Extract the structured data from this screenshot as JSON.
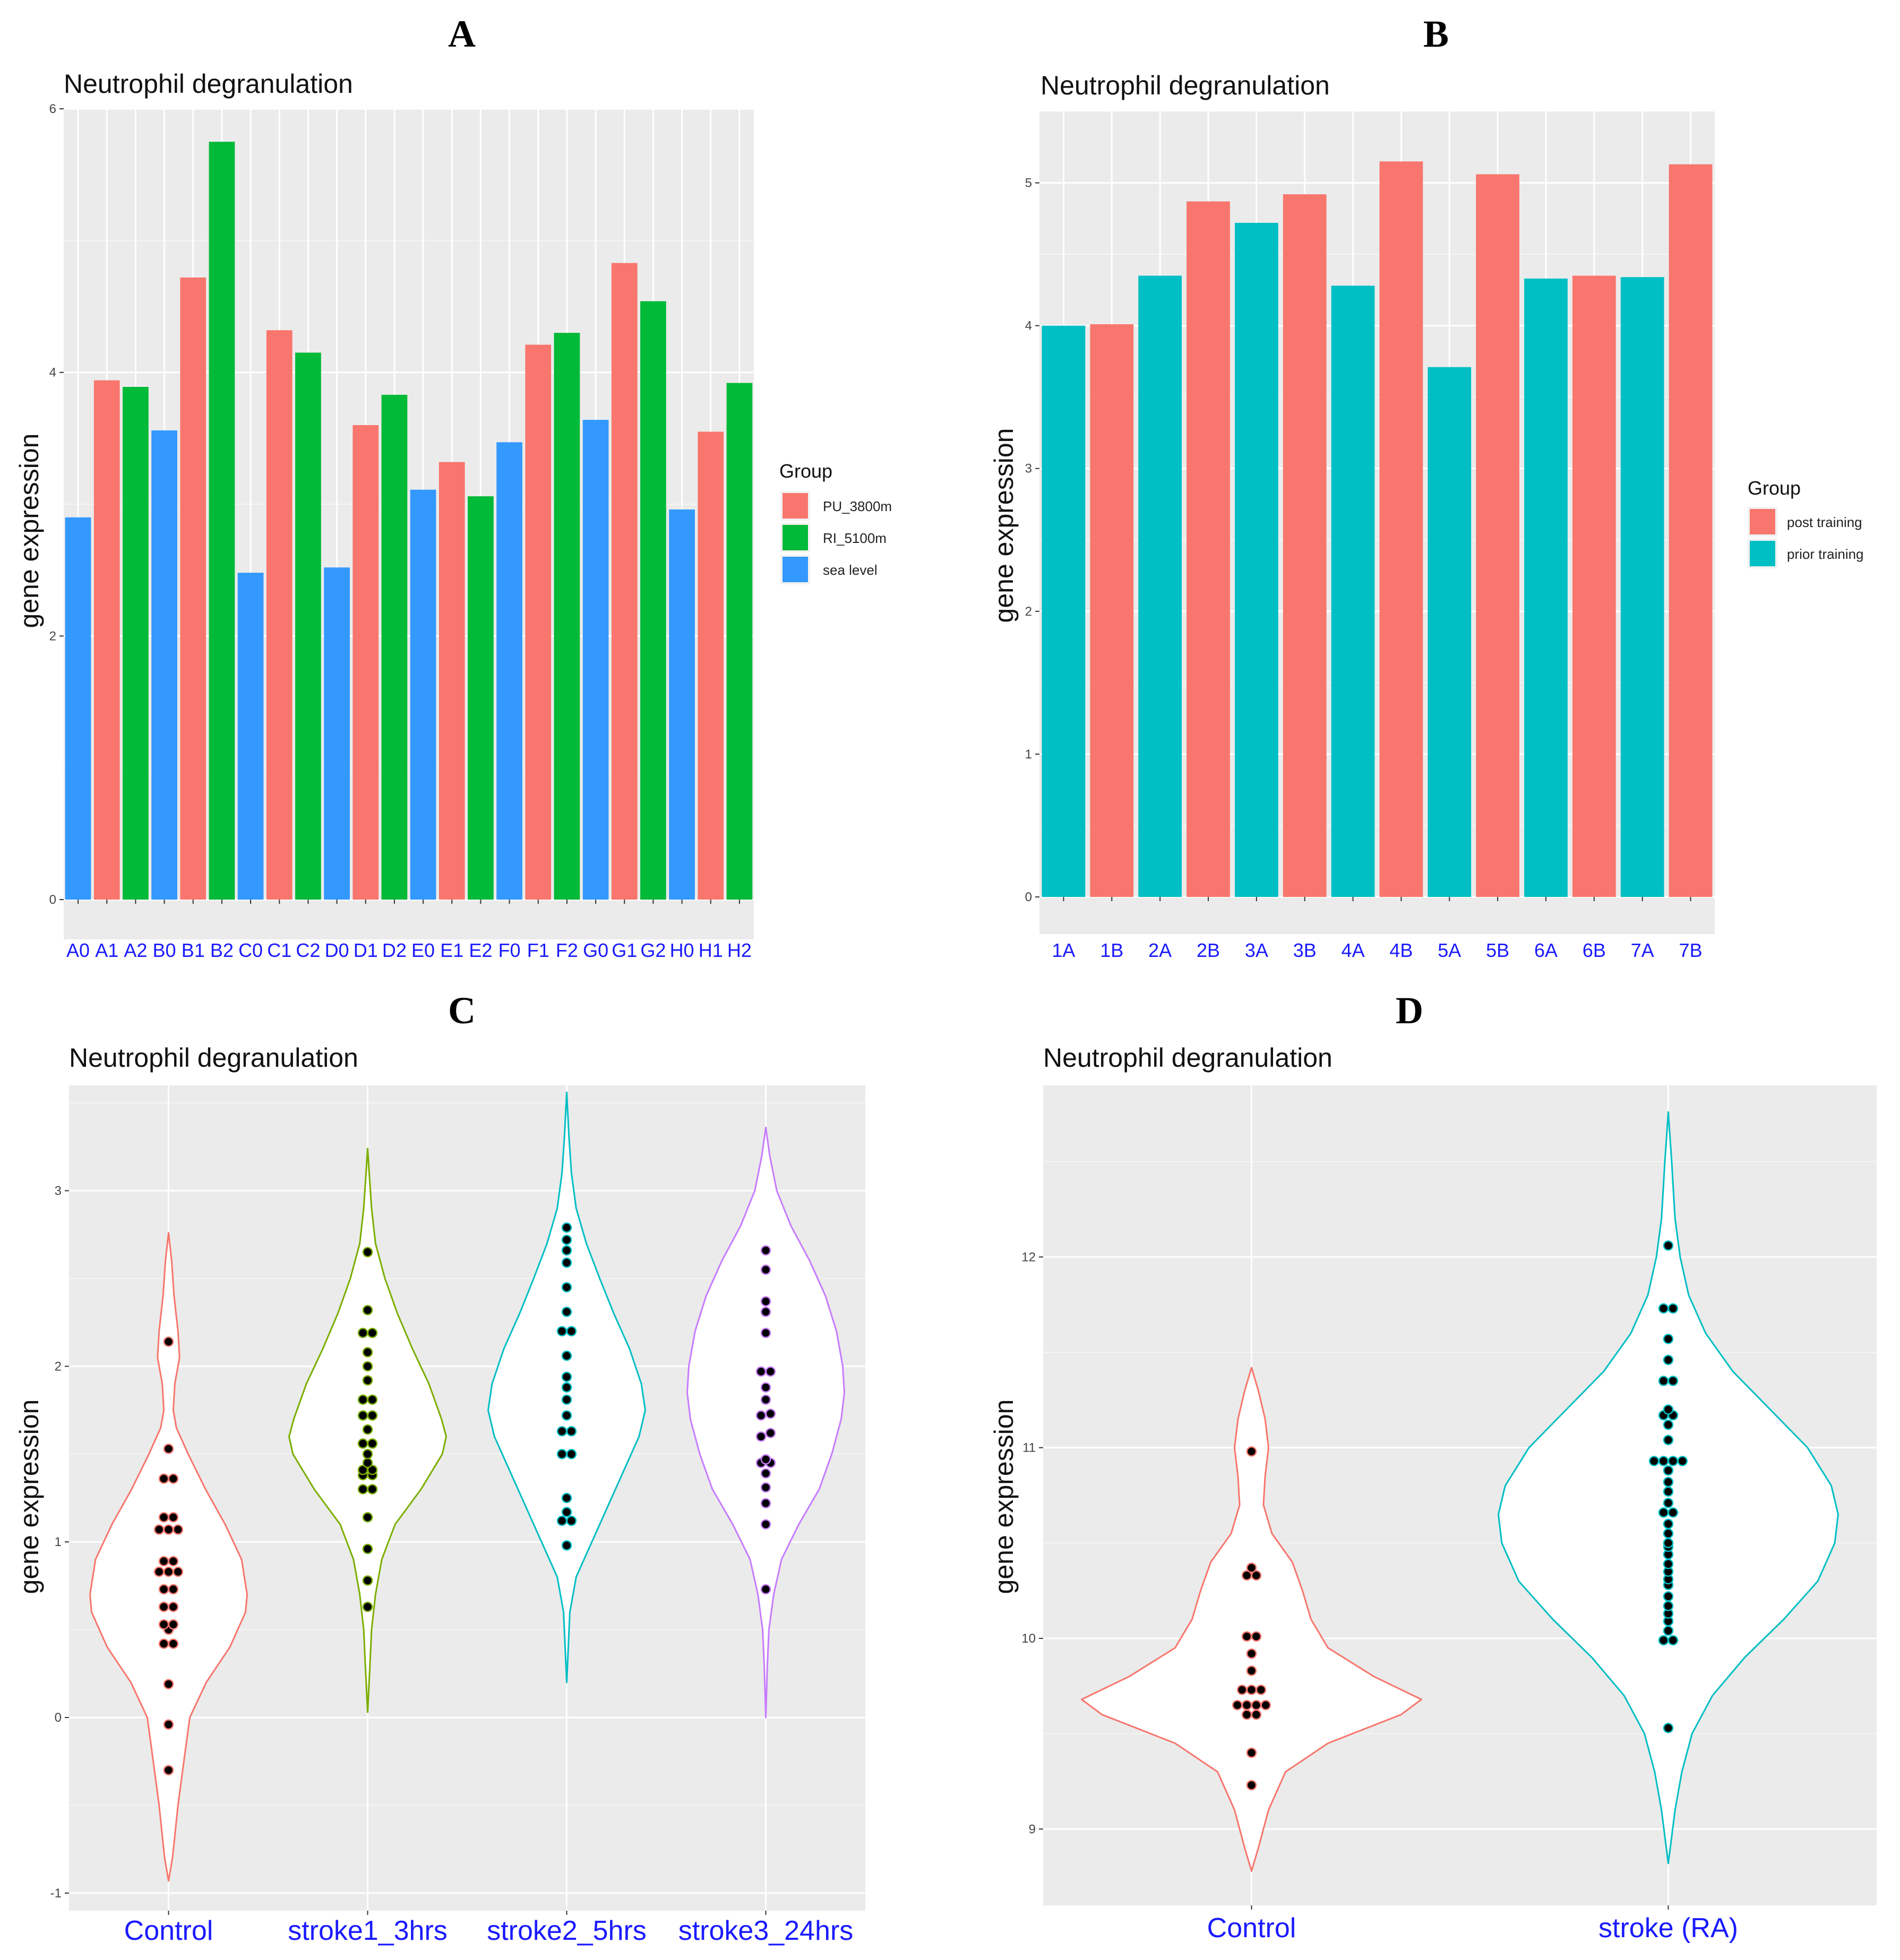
{
  "figure": {
    "panel_letters": [
      "A",
      "B",
      "C",
      "D"
    ]
  },
  "chart_data": [
    {
      "panel": "A",
      "type": "bar",
      "title": "Neutrophil degranulation",
      "xlabel": "",
      "ylabel": "gene expression",
      "ylim": [
        0,
        6
      ],
      "yticks": [
        "0",
        "2",
        "4",
        "6"
      ],
      "categories": [
        "A0",
        "A1",
        "A2",
        "B0",
        "B1",
        "B2",
        "C0",
        "C1",
        "C2",
        "D0",
        "D1",
        "D2",
        "E0",
        "E1",
        "E2",
        "F0",
        "F1",
        "F2",
        "G0",
        "G1",
        "G2",
        "H0",
        "H1",
        "H2"
      ],
      "values": [
        2.9,
        3.94,
        3.89,
        3.56,
        4.72,
        5.75,
        2.48,
        4.32,
        4.15,
        2.52,
        3.6,
        3.83,
        3.11,
        3.32,
        3.06,
        3.47,
        4.21,
        4.3,
        3.64,
        4.83,
        4.54,
        2.96,
        3.55,
        3.92
      ],
      "groups": [
        "sea level",
        "PU_3800m",
        "RI_5100m",
        "sea level",
        "PU_3800m",
        "RI_5100m",
        "sea level",
        "PU_3800m",
        "RI_5100m",
        "sea level",
        "PU_3800m",
        "RI_5100m",
        "sea level",
        "PU_3800m",
        "RI_5100m",
        "sea level",
        "PU_3800m",
        "RI_5100m",
        "sea level",
        "PU_3800m",
        "RI_5100m",
        "sea level",
        "PU_3800m",
        "RI_5100m"
      ],
      "legend": {
        "title": "Group",
        "position": "right",
        "entries": [
          {
            "label": "PU_3800m",
            "color": "#F8766D"
          },
          {
            "label": "RI_5100m",
            "color": "#00BA38"
          },
          {
            "label": "sea level",
            "color": "#3399FF"
          }
        ]
      }
    },
    {
      "panel": "B",
      "type": "bar",
      "title": "Neutrophil degranulation",
      "xlabel": "",
      "ylabel": "gene expression",
      "ylim": [
        0,
        5.5
      ],
      "yticks": [
        "0",
        "1",
        "2",
        "3",
        "4",
        "5"
      ],
      "categories": [
        "1A",
        "1B",
        "2A",
        "2B",
        "3A",
        "3B",
        "4A",
        "4B",
        "5A",
        "5B",
        "6A",
        "6B",
        "7A",
        "7B"
      ],
      "values": [
        4.0,
        4.01,
        4.35,
        4.87,
        4.72,
        4.92,
        4.28,
        5.15,
        3.71,
        5.06,
        4.33,
        4.35,
        4.34,
        5.13
      ],
      "groups": [
        "prior training",
        "post training",
        "prior training",
        "post training",
        "prior training",
        "post training",
        "prior training",
        "post training",
        "prior training",
        "post training",
        "prior training",
        "post training",
        "prior training",
        "post training"
      ],
      "legend": {
        "title": "Group",
        "position": "right",
        "entries": [
          {
            "label": "post training",
            "color": "#F8766D"
          },
          {
            "label": "prior training",
            "color": "#00BFC4"
          }
        ]
      }
    },
    {
      "panel": "C",
      "type": "violin",
      "title": "Neutrophil degranulation",
      "xlabel": "",
      "ylabel": "gene expression",
      "ylim": [
        -1.1,
        3.6
      ],
      "yticks": [
        "-1",
        "0",
        "1",
        "2",
        "3"
      ],
      "categories": [
        "Control",
        "stroke1_3hrs",
        "stroke2_5hrs",
        "stroke3_24hrs"
      ],
      "series": [
        {
          "name": "Control",
          "color": "#F8766D",
          "points": [
            2.14,
            1.53,
            1.36,
            1.36,
            1.14,
            1.14,
            1.07,
            1.07,
            1.07,
            0.89,
            0.89,
            0.83,
            0.83,
            0.83,
            0.73,
            0.73,
            0.63,
            0.63,
            0.53,
            0.53,
            0.5,
            0.42,
            0.42,
            0.19,
            -0.04,
            -0.3
          ],
          "range": [
            -0.93,
            2.76
          ],
          "density": [
            [
              -0.93,
              0.0
            ],
            [
              -0.8,
              0.05
            ],
            [
              -0.5,
              0.12
            ],
            [
              -0.3,
              0.18
            ],
            [
              0.0,
              0.27
            ],
            [
              0.2,
              0.48
            ],
            [
              0.4,
              0.78
            ],
            [
              0.6,
              0.98
            ],
            [
              0.7,
              1.0
            ],
            [
              0.9,
              0.93
            ],
            [
              1.1,
              0.72
            ],
            [
              1.3,
              0.47
            ],
            [
              1.5,
              0.25
            ],
            [
              1.65,
              0.1
            ],
            [
              1.75,
              0.06
            ],
            [
              1.9,
              0.08
            ],
            [
              2.05,
              0.14
            ],
            [
              2.2,
              0.12
            ],
            [
              2.4,
              0.07
            ],
            [
              2.6,
              0.04
            ],
            [
              2.76,
              0.0
            ]
          ]
        },
        {
          "name": "stroke1_3hrs",
          "color": "#7CAE00",
          "points": [
            2.65,
            2.32,
            2.19,
            2.19,
            2.08,
            2.0,
            1.92,
            1.81,
            1.81,
            1.72,
            1.72,
            1.64,
            1.56,
            1.56,
            1.5,
            1.45,
            1.41,
            1.41,
            1.38,
            1.38,
            1.3,
            1.3,
            1.14,
            0.96,
            0.78,
            0.63
          ],
          "range": [
            0.03,
            3.24
          ],
          "density": [
            [
              0.03,
              0.0
            ],
            [
              0.3,
              0.03
            ],
            [
              0.5,
              0.05
            ],
            [
              0.7,
              0.1
            ],
            [
              0.9,
              0.18
            ],
            [
              1.1,
              0.35
            ],
            [
              1.3,
              0.68
            ],
            [
              1.5,
              0.95
            ],
            [
              1.6,
              1.0
            ],
            [
              1.7,
              0.94
            ],
            [
              1.9,
              0.78
            ],
            [
              2.1,
              0.57
            ],
            [
              2.3,
              0.38
            ],
            [
              2.5,
              0.22
            ],
            [
              2.7,
              0.1
            ],
            [
              2.9,
              0.05
            ],
            [
              3.1,
              0.02
            ],
            [
              3.24,
              0.0
            ]
          ]
        },
        {
          "name": "stroke2_5hrs",
          "color": "#00BFC4",
          "points": [
            2.79,
            2.72,
            2.66,
            2.59,
            2.45,
            2.31,
            2.2,
            2.2,
            2.06,
            1.94,
            1.88,
            1.81,
            1.72,
            1.63,
            1.63,
            1.5,
            1.5,
            1.25,
            1.17,
            1.12,
            1.12,
            0.98
          ],
          "range": [
            0.2,
            3.56
          ],
          "density": [
            [
              0.2,
              0.0
            ],
            [
              0.4,
              0.02
            ],
            [
              0.6,
              0.04
            ],
            [
              0.8,
              0.12
            ],
            [
              1.0,
              0.32
            ],
            [
              1.2,
              0.52
            ],
            [
              1.4,
              0.72
            ],
            [
              1.6,
              0.92
            ],
            [
              1.75,
              1.0
            ],
            [
              1.9,
              0.95
            ],
            [
              2.1,
              0.8
            ],
            [
              2.3,
              0.6
            ],
            [
              2.5,
              0.42
            ],
            [
              2.7,
              0.25
            ],
            [
              2.9,
              0.12
            ],
            [
              3.1,
              0.06
            ],
            [
              3.3,
              0.03
            ],
            [
              3.56,
              0.0
            ]
          ]
        },
        {
          "name": "stroke3_24hrs",
          "color": "#C77CFF",
          "points": [
            2.66,
            2.55,
            2.37,
            2.31,
            2.19,
            1.97,
            1.97,
            1.88,
            1.81,
            1.73,
            1.72,
            1.62,
            1.6,
            1.47,
            1.45,
            1.45,
            1.39,
            1.31,
            1.22,
            1.1,
            0.73
          ],
          "range": [
            0.0,
            3.36
          ],
          "density": [
            [
              0.0,
              0.0
            ],
            [
              0.3,
              0.02
            ],
            [
              0.5,
              0.04
            ],
            [
              0.7,
              0.1
            ],
            [
              0.9,
              0.2
            ],
            [
              1.1,
              0.42
            ],
            [
              1.3,
              0.68
            ],
            [
              1.5,
              0.84
            ],
            [
              1.7,
              0.96
            ],
            [
              1.85,
              1.0
            ],
            [
              2.0,
              0.98
            ],
            [
              2.2,
              0.9
            ],
            [
              2.4,
              0.76
            ],
            [
              2.6,
              0.56
            ],
            [
              2.8,
              0.32
            ],
            [
              3.0,
              0.14
            ],
            [
              3.2,
              0.05
            ],
            [
              3.36,
              0.0
            ]
          ]
        }
      ]
    },
    {
      "panel": "D",
      "type": "violin",
      "title": "Neutrophil degranulation",
      "xlabel": "",
      "ylabel": "gene expression",
      "ylim": [
        8.6,
        12.9
      ],
      "yticks": [
        "9",
        "10",
        "11",
        "12"
      ],
      "categories": [
        "Control",
        "stroke (RA)"
      ],
      "series": [
        {
          "name": "Control",
          "color": "#F8766D",
          "points": [
            10.98,
            10.37,
            10.33,
            10.33,
            10.01,
            10.01,
            9.92,
            9.83,
            9.73,
            9.73,
            9.73,
            9.65,
            9.65,
            9.65,
            9.65,
            9.6,
            9.6,
            9.4,
            9.23
          ],
          "range": [
            8.78,
            11.42
          ],
          "density": [
            [
              8.78,
              0.0
            ],
            [
              8.9,
              0.04
            ],
            [
              9.1,
              0.1
            ],
            [
              9.3,
              0.2
            ],
            [
              9.45,
              0.45
            ],
            [
              9.6,
              0.88
            ],
            [
              9.68,
              1.0
            ],
            [
              9.8,
              0.72
            ],
            [
              9.95,
              0.45
            ],
            [
              10.1,
              0.35
            ],
            [
              10.25,
              0.3
            ],
            [
              10.4,
              0.24
            ],
            [
              10.55,
              0.12
            ],
            [
              10.7,
              0.07
            ],
            [
              10.85,
              0.08
            ],
            [
              11.0,
              0.1
            ],
            [
              11.15,
              0.08
            ],
            [
              11.3,
              0.04
            ],
            [
              11.42,
              0.0
            ]
          ]
        },
        {
          "name": "stroke (RA)",
          "color": "#00BFC4",
          "points": [
            12.06,
            11.73,
            11.73,
            11.57,
            11.46,
            11.35,
            11.35,
            11.2,
            11.17,
            11.17,
            11.12,
            11.04,
            10.93,
            10.93,
            10.93,
            10.93,
            10.88,
            10.82,
            10.77,
            10.71,
            10.66,
            10.66,
            10.6,
            10.55,
            10.5,
            10.48,
            10.44,
            10.39,
            10.35,
            10.31,
            10.28,
            10.22,
            10.17,
            10.13,
            10.09,
            10.04,
            9.99,
            9.99,
            9.53
          ],
          "range": [
            8.82,
            12.76
          ],
          "density": [
            [
              8.82,
              0.0
            ],
            [
              9.1,
              0.04
            ],
            [
              9.3,
              0.08
            ],
            [
              9.5,
              0.14
            ],
            [
              9.7,
              0.26
            ],
            [
              9.9,
              0.45
            ],
            [
              10.1,
              0.68
            ],
            [
              10.3,
              0.88
            ],
            [
              10.5,
              0.98
            ],
            [
              10.65,
              1.0
            ],
            [
              10.8,
              0.96
            ],
            [
              11.0,
              0.82
            ],
            [
              11.2,
              0.6
            ],
            [
              11.4,
              0.38
            ],
            [
              11.6,
              0.22
            ],
            [
              11.8,
              0.12
            ],
            [
              12.0,
              0.07
            ],
            [
              12.2,
              0.04
            ],
            [
              12.5,
              0.02
            ],
            [
              12.76,
              0.0
            ]
          ]
        }
      ]
    }
  ]
}
